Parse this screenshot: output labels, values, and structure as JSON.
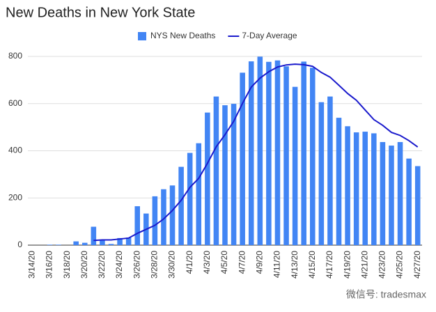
{
  "chart_data": {
    "type": "bar",
    "title": "New Deaths in New York State",
    "categories": [
      "3/14/20",
      null,
      "3/16/20",
      null,
      "3/18/20",
      null,
      "3/20/20",
      null,
      "3/22/20",
      null,
      "3/24/20",
      null,
      "3/26/20",
      null,
      "3/28/20",
      null,
      "3/30/20",
      null,
      "4/1/20",
      null,
      "4/3/20",
      null,
      "4/5/20",
      null,
      "4/7/20",
      null,
      "4/9/20",
      null,
      "4/11/20",
      null,
      "4/13/20",
      null,
      "4/15/20",
      null,
      "4/17/20",
      null,
      "4/19/20",
      null,
      "4/21/20",
      null,
      "4/23/20",
      null,
      "4/25/20",
      null,
      "4/27/20"
    ],
    "series": [
      {
        "name": "NYS New Deaths",
        "type": "bar",
        "color": "#4285f4",
        "values": [
          0,
          0,
          2,
          2,
          0,
          16,
          10,
          78,
          20,
          5,
          30,
          32,
          165,
          134,
          207,
          237,
          253,
          332,
          391,
          432,
          562,
          630,
          593,
          599,
          731,
          779,
          799,
          777,
          783,
          758,
          671,
          778,
          752,
          606,
          630,
          540,
          504,
          478,
          481,
          474,
          437,
          422,
          437,
          367,
          335
        ]
      },
      {
        "name": "7-Day Average",
        "type": "line",
        "color": "#1a1acc",
        "values": [
          null,
          null,
          null,
          null,
          null,
          null,
          null,
          20,
          22,
          22,
          26,
          30,
          50,
          67,
          84,
          111,
          147,
          190,
          245,
          283,
          347,
          417,
          468,
          525,
          601,
          670,
          708,
          735,
          755,
          764,
          767,
          765,
          758,
          732,
          712,
          678,
          643,
          614,
          573,
          532,
          508,
          478,
          465,
          443,
          416
        ]
      }
    ],
    "ylim": [
      0,
      800
    ],
    "yticks": [
      0,
      200,
      400,
      600,
      800
    ],
    "grid": true,
    "annotation": "微信号: tradesmax"
  }
}
